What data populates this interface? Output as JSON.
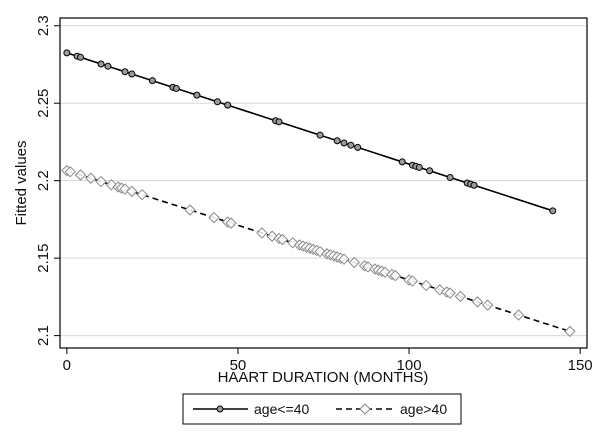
{
  "chart_data": {
    "type": "line",
    "xlabel": "HAART DURATION (MONTHS)",
    "ylabel": "Fitted values",
    "xlim": [
      -2,
      152
    ],
    "ylim": [
      2.092,
      2.305
    ],
    "xticks": [
      0,
      50,
      100,
      150
    ],
    "yticks": [
      2.1,
      2.15,
      2.2,
      2.25,
      2.3
    ],
    "ytick_labels": [
      "2.1",
      "2.15",
      "2.2",
      "2.25",
      "2.3"
    ],
    "grid": true,
    "legend_position": "bottom",
    "series": [
      {
        "name": "age<=40",
        "color": "#000000",
        "line_style": "solid",
        "marker": "circle",
        "intercept": 2.2825,
        "slope": -0.000718,
        "x": [
          0,
          3,
          4,
          10,
          12,
          17,
          19,
          25,
          31,
          32,
          38,
          44,
          47,
          61,
          62,
          74,
          79,
          81,
          83,
          85,
          98,
          101,
          102,
          103,
          106,
          112,
          117,
          118,
          119,
          142
        ]
      },
      {
        "name": "age>40",
        "color": "#000000",
        "line_style": "dashed",
        "marker": "diamond",
        "intercept": 2.2065,
        "slope": -0.000706,
        "x": [
          0,
          1,
          4,
          7,
          10,
          13,
          15,
          16,
          17,
          19,
          22,
          36,
          43,
          47,
          48,
          57,
          60,
          62,
          63,
          66,
          68,
          69,
          70,
          71,
          72,
          73,
          74,
          76,
          77,
          78,
          79,
          80,
          81,
          84,
          87,
          88,
          90,
          91,
          92,
          93,
          95,
          96,
          100,
          101,
          105,
          109,
          111,
          112,
          115,
          120,
          123,
          132,
          147
        ]
      }
    ]
  }
}
